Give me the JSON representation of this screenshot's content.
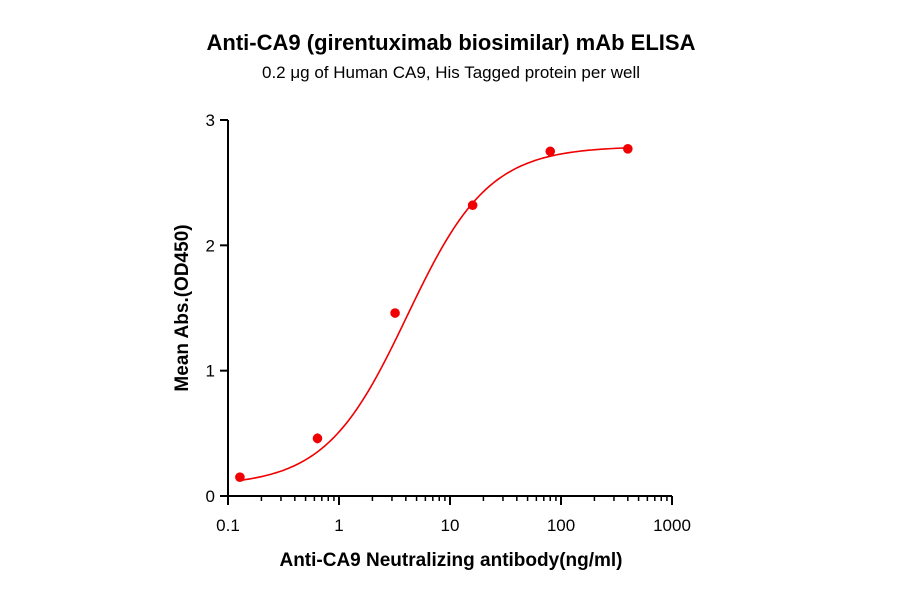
{
  "chart_data": {
    "type": "scatter",
    "title": "Anti-CA9 (girentuximab biosimilar) mAb ELISA",
    "subtitle": "0.2 μg of Human CA9, His Tagged protein per well",
    "xlabel": "Anti-CA9 Neutralizing antibody(ng/ml)",
    "ylabel": "Mean Abs.(OD450)",
    "xscale": "log",
    "xlim": [
      0.1,
      1000
    ],
    "ylim": [
      0,
      3
    ],
    "x_ticks": [
      0.1,
      1,
      10,
      100,
      1000
    ],
    "x_tick_labels": [
      "0.1",
      "1",
      "10",
      "100",
      "1000"
    ],
    "y_ticks": [
      0,
      1,
      2,
      3
    ],
    "y_tick_labels": [
      "0",
      "1",
      "2",
      "3"
    ],
    "grid": false,
    "legend": "none",
    "series": [
      {
        "x": [
          0.128,
          0.64,
          3.2,
          16,
          80,
          400
        ],
        "y": [
          0.15,
          0.46,
          1.46,
          2.32,
          2.75,
          2.77
        ],
        "error": [
          0.01,
          0.04,
          0.02,
          0.02,
          0.02,
          0.02
        ]
      }
    ],
    "fit": {
      "model": "4PL",
      "bottom": 0.08,
      "top": 2.79,
      "ec50": 4.1,
      "hill": 1.18
    },
    "colors": {
      "points": "#f00000",
      "curve": "#f00000",
      "axes": "#000000"
    }
  }
}
